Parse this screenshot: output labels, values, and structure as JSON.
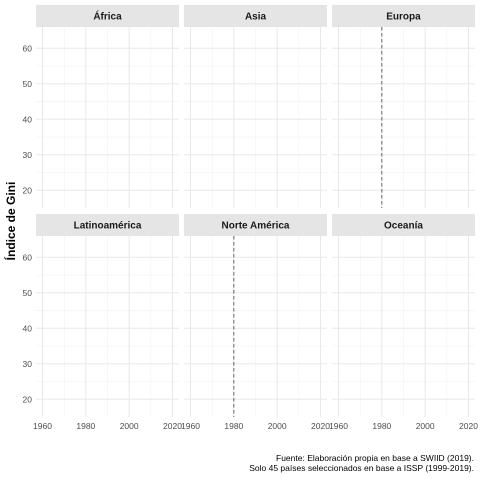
{
  "chart_data": {
    "type": "line",
    "facets": [
      "África",
      "Asia",
      "Europa",
      "Latinoamérica",
      "Norte América",
      "Oceanía"
    ],
    "ylabel": "Índice de Gini",
    "xlabel": "",
    "x_ticks": [
      1960,
      1980,
      2000,
      2020
    ],
    "y_ticks": [
      20,
      30,
      40,
      50,
      60
    ],
    "xlim": [
      1957,
      2023
    ],
    "ylim": [
      15,
      66
    ],
    "grid": true,
    "reference_lines": [
      {
        "facet": "Europa",
        "x": 1980,
        "style": "dashed"
      },
      {
        "facet": "Norte América",
        "x": 1980,
        "style": "dashed"
      }
    ],
    "series": []
  },
  "caption": {
    "line1": "Fuente: Elaboración propia en base a SWIID (2019).",
    "line2": "Solo 45 países seleccionados en base a ISSP (1999-2019)."
  }
}
